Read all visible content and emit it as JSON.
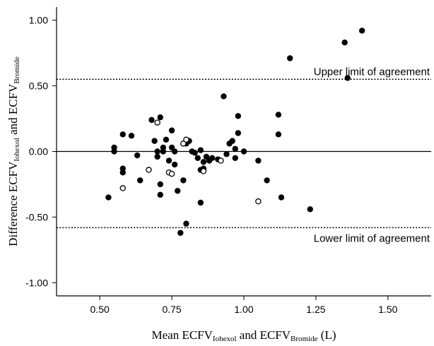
{
  "chart_data": {
    "type": "scatter",
    "xlabel": {
      "parts": [
        {
          "text": "Mean ECFV"
        },
        {
          "text": "Iohexol",
          "sub": true
        },
        {
          "text": " and ECFV"
        },
        {
          "text": "Bromide",
          "sub": true
        },
        {
          "text": " (L)"
        }
      ]
    },
    "ylabel": {
      "parts": [
        {
          "text": "Difference ECFV"
        },
        {
          "text": "Iohexol",
          "sub": true
        },
        {
          "text": " and ECFV"
        },
        {
          "text": "Bromide",
          "sub": true
        }
      ]
    },
    "xlim": [
      0.35,
      1.65
    ],
    "ylim": [
      -1.1,
      1.1
    ],
    "x_ticks": [
      "0.50",
      "0.75",
      "1.00",
      "1.25",
      "1.50"
    ],
    "y_ticks": [
      "1.00",
      "0.50",
      "0.00",
      "-0.50",
      "-1.00"
    ],
    "reference_lines": [
      {
        "label": "",
        "y": 0.0,
        "style": "solid"
      },
      {
        "label": "Upper limit of agreement",
        "y": 0.55,
        "style": "dotted"
      },
      {
        "label": "Lower limit of agreement",
        "y": -0.58,
        "style": "dotted"
      }
    ],
    "series": [
      {
        "marker": "filled",
        "color": "#000000",
        "points": [
          [
            0.53,
            -0.35
          ],
          [
            0.55,
            0.03
          ],
          [
            0.55,
            0.0
          ],
          [
            0.58,
            0.13
          ],
          [
            0.58,
            -0.13
          ],
          [
            0.58,
            -0.16
          ],
          [
            0.61,
            0.12
          ],
          [
            0.63,
            -0.03
          ],
          [
            0.64,
            -0.22
          ],
          [
            0.68,
            0.24
          ],
          [
            0.69,
            0.08
          ],
          [
            0.7,
            0.0
          ],
          [
            0.7,
            -0.04
          ],
          [
            0.71,
            0.26
          ],
          [
            0.71,
            -0.25
          ],
          [
            0.71,
            -0.33
          ],
          [
            0.72,
            0.03
          ],
          [
            0.72,
            0.0
          ],
          [
            0.73,
            0.09
          ],
          [
            0.74,
            -0.07
          ],
          [
            0.75,
            0.16
          ],
          [
            0.75,
            0.03
          ],
          [
            0.76,
            0.0
          ],
          [
            0.76,
            -0.1
          ],
          [
            0.77,
            -0.3
          ],
          [
            0.78,
            -0.62
          ],
          [
            0.79,
            -0.22
          ],
          [
            0.8,
            -0.55
          ],
          [
            0.8,
            0.06
          ],
          [
            0.81,
            0.08
          ],
          [
            0.82,
            0.0
          ],
          [
            0.83,
            -0.01
          ],
          [
            0.84,
            -0.05
          ],
          [
            0.85,
            -0.14
          ],
          [
            0.85,
            -0.39
          ],
          [
            0.85,
            0.01
          ],
          [
            0.86,
            -0.08
          ],
          [
            0.86,
            -0.13
          ],
          [
            0.87,
            -0.04
          ],
          [
            0.88,
            -0.07
          ],
          [
            0.89,
            -0.05
          ],
          [
            0.91,
            -0.06
          ],
          [
            0.93,
            0.42
          ],
          [
            0.94,
            -0.02
          ],
          [
            0.95,
            0.06
          ],
          [
            0.96,
            0.08
          ],
          [
            0.97,
            0.02
          ],
          [
            0.97,
            -0.05
          ],
          [
            0.98,
            0.14
          ],
          [
            0.98,
            0.27
          ],
          [
            1.0,
            0.0
          ],
          [
            1.05,
            -0.07
          ],
          [
            1.08,
            -0.22
          ],
          [
            1.12,
            0.28
          ],
          [
            1.12,
            0.13
          ],
          [
            1.13,
            -0.35
          ],
          [
            1.16,
            0.71
          ],
          [
            1.23,
            -0.44
          ],
          [
            1.35,
            0.83
          ],
          [
            1.36,
            0.56
          ],
          [
            1.41,
            0.92
          ]
        ]
      },
      {
        "marker": "open",
        "color": "#000000",
        "points": [
          [
            0.58,
            -0.28
          ],
          [
            0.67,
            -0.14
          ],
          [
            0.7,
            0.22
          ],
          [
            0.74,
            -0.16
          ],
          [
            0.75,
            -0.17
          ],
          [
            0.79,
            0.06
          ],
          [
            0.8,
            0.09
          ],
          [
            0.86,
            -0.15
          ],
          [
            0.92,
            -0.07
          ],
          [
            1.05,
            -0.38
          ]
        ]
      }
    ]
  }
}
